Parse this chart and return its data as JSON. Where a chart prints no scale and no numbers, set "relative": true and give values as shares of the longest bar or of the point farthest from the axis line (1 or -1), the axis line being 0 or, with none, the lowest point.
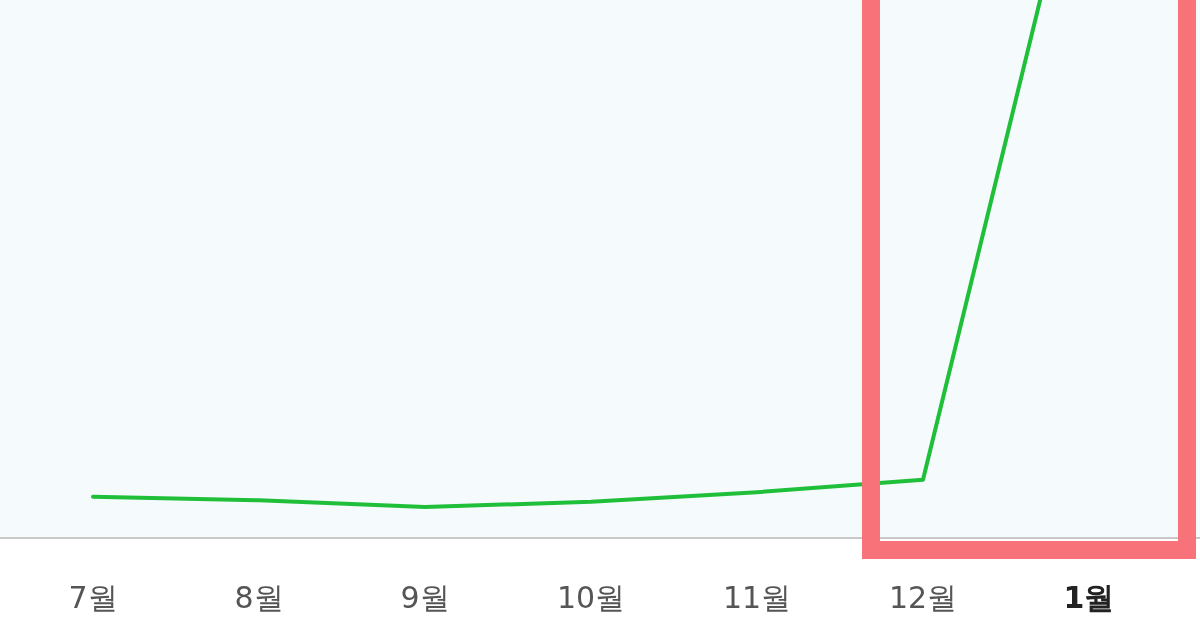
{
  "chart_data": {
    "type": "line",
    "relative": true,
    "categories": [
      "7월",
      "8월",
      "9월",
      "10월",
      "11월",
      "12월",
      "1월"
    ],
    "series": [
      {
        "color": "#1fbf3a",
        "values": [
          0.056,
          0.051,
          0.042,
          0.049,
          0.062,
          0.079,
          1
        ]
      }
    ],
    "marker": "none"
  }
}
